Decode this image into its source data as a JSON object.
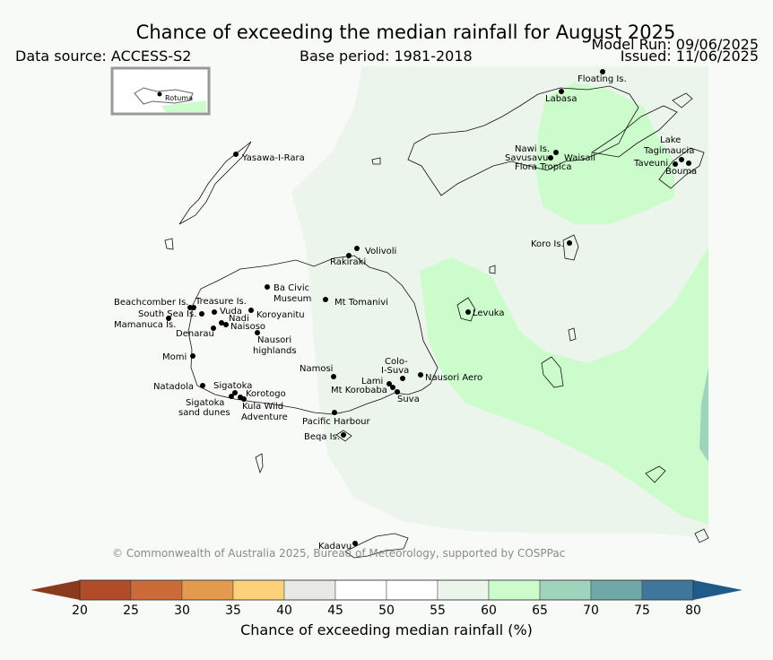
{
  "header": {
    "title": "Chance of exceeding the median rainfall for August 2025",
    "model_run": "Model Run: 09/06/2025",
    "issued": "Issued: 11/06/2025",
    "data_source": "Data source: ACCESS-S2",
    "base_period": "Base period: 1981-2018"
  },
  "map": {
    "inset_label": "Rotuma",
    "copyright": "© Commonwealth of Australia 2025, Bureau of Meteorology, supported by COSPPac",
    "places": {
      "floating": "Floating Is.",
      "labasa": "Labasa",
      "lake_1": "Lake",
      "lake_2": "Tagimaucia",
      "nawi": "Nawi Is.",
      "savusavu": "Savusavu",
      "waisali": "Waisali",
      "flora": "Flora Tropica",
      "taveuni": "Taveuni",
      "bouma": "Bouma",
      "yasawa": "Yasawa-I-Rara",
      "koro": "Koro Is.",
      "volivoli": "Volivoli",
      "rakiraki": "Rakiraki",
      "beachcomber": "Beachcomber Is.",
      "treasure": "Treasure Is.",
      "southsea": "South Sea Is.",
      "vuda": "Vuda",
      "mamanuca": "Mamanuca Is.",
      "nadi": "Nadi",
      "naisoso": "Naisoso",
      "denarau": "Denarau",
      "koroyanitu": "Koroyanitu",
      "bacivic_1": "Ba Civic",
      "bacivic_2": "Museum",
      "tomanivi": "Mt Tomanivi",
      "nausori_h1": "Nausori",
      "nausori_h2": "highlands",
      "levuka": "Levuka",
      "momi": "Momi",
      "natadola": "Natadola",
      "sigatoka": "Sigatoka",
      "korotogo": "Korotogo",
      "sigsand_1": "Sigatoka",
      "sigsand_2": "sand dunes",
      "kula_1": "Kula Wild",
      "kula_2": "Adventure",
      "namosi": "Namosi",
      "colo_1": "Colo-",
      "colo_2": "I-Suva",
      "lami": "Lami",
      "korobaba": "Mt Korobaba",
      "suva": "Suva",
      "nausori_aero": "Nausori Aero",
      "pacific": "Pacific Harbour",
      "beqa": "Beqa Is.",
      "kadavu": "Kadavu"
    }
  },
  "colorbar": {
    "label": "Chance of exceeding median rainfall (%)",
    "ticks": [
      "20",
      "25",
      "30",
      "35",
      "40",
      "45",
      "50",
      "55",
      "60",
      "65",
      "70",
      "75",
      "80"
    ],
    "low_end_color": "#8c3a1f",
    "high_end_color": "#1e5a8a",
    "colors": [
      "#b24b27",
      "#cc6b3a",
      "#e39a4d",
      "#fdd17a",
      "#e8e8e4",
      "#ffffff",
      "#ffffff",
      "#ebf5eb",
      "#ccfccc",
      "#9fd4bc",
      "#6fa8a6",
      "#3e779b"
    ]
  }
}
